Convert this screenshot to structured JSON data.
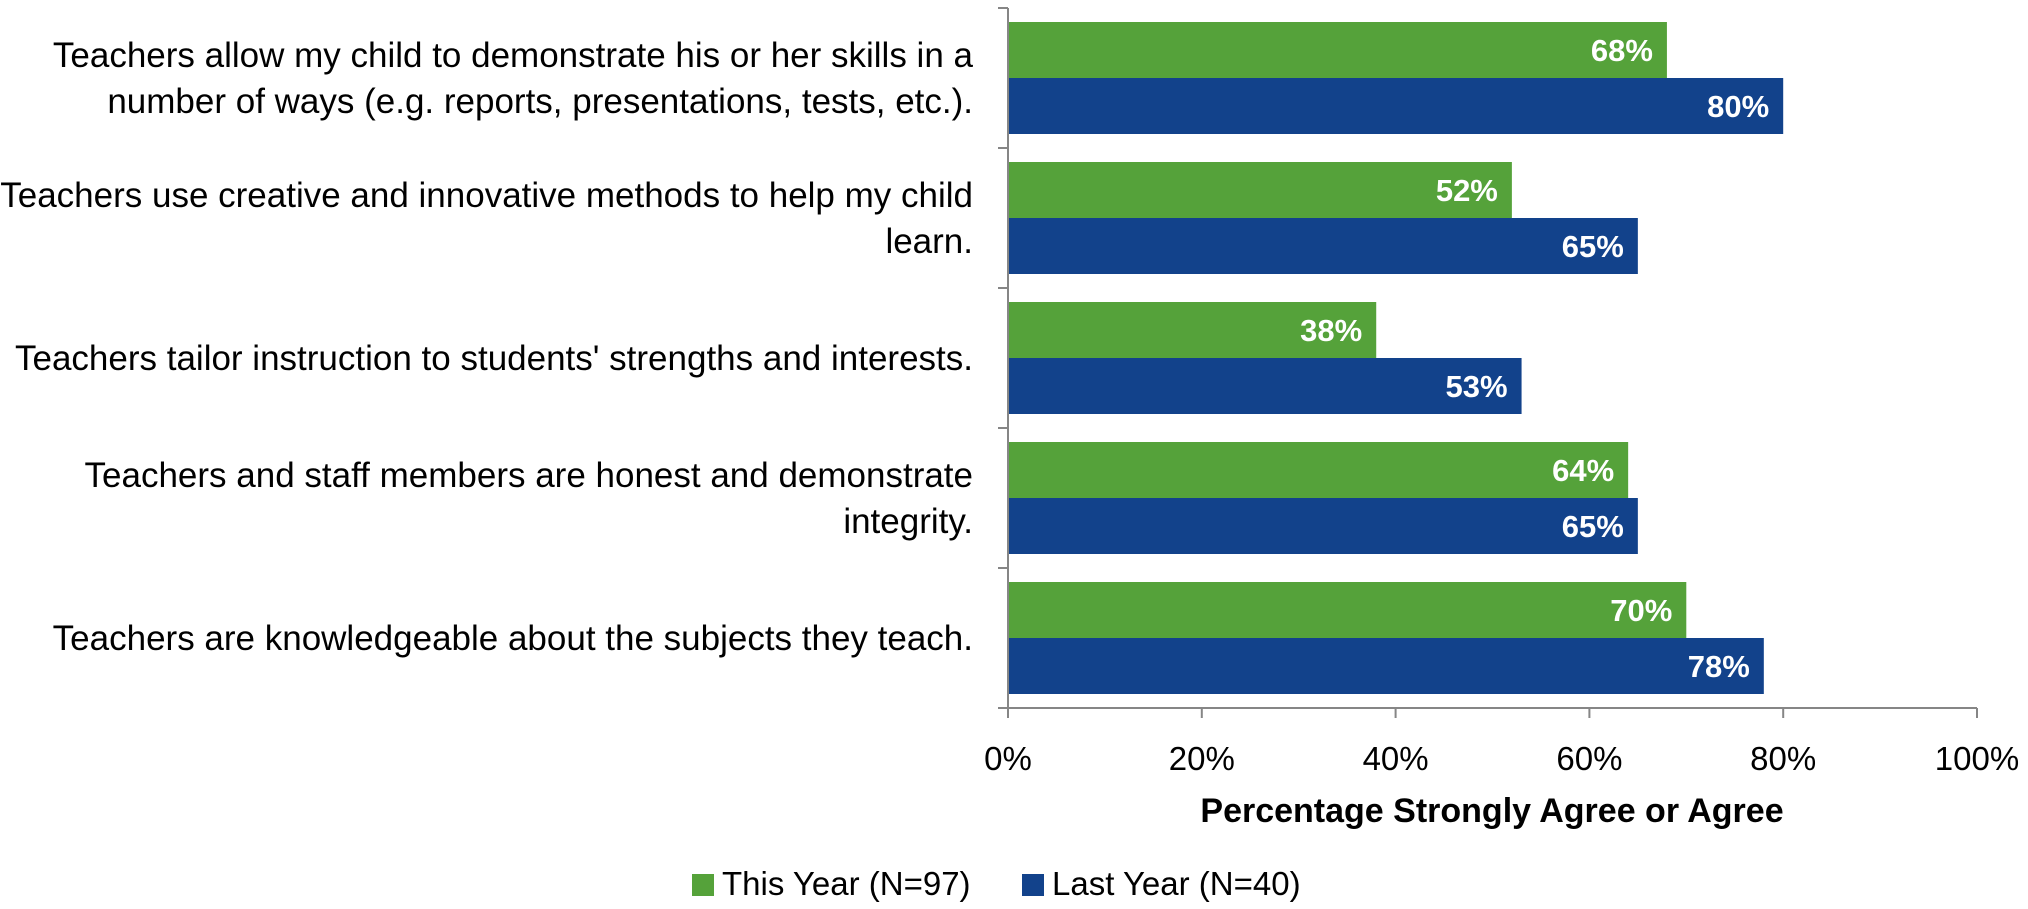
{
  "chart_data": {
    "type": "bar",
    "orientation": "horizontal",
    "categories": [
      [
        "Teachers allow my child to demonstrate his or her skills in a",
        "number of ways (e.g. reports, presentations, tests, etc.)."
      ],
      [
        "Teachers use creative and innovative methods to help my child",
        "learn."
      ],
      [
        "Teachers tailor instruction to students' strengths and interests."
      ],
      [
        "Teachers and staff members are honest and demonstrate",
        "integrity."
      ],
      [
        "Teachers are knowledgeable about the subjects they teach."
      ]
    ],
    "series": [
      {
        "name": "This Year (N=97)",
        "color": "#55a23a",
        "values": [
          68,
          52,
          38,
          64,
          70
        ],
        "labels": [
          "68%",
          "52%",
          "38%",
          "64%",
          "70%"
        ]
      },
      {
        "name": "Last Year (N=40)",
        "color": "#12428b",
        "values": [
          80,
          65,
          53,
          65,
          78
        ],
        "labels": [
          "80%",
          "65%",
          "53%",
          "65%",
          "78%"
        ]
      }
    ],
    "xlabel": "Percentage Strongly Agree or Agree",
    "ylabel": "",
    "xlim": [
      0,
      100
    ],
    "xticks": [
      0,
      20,
      40,
      60,
      80,
      100
    ],
    "xtick_labels": [
      "0%",
      "20%",
      "40%",
      "60%",
      "80%",
      "100%"
    ],
    "grid": false,
    "legend_position": "bottom"
  }
}
